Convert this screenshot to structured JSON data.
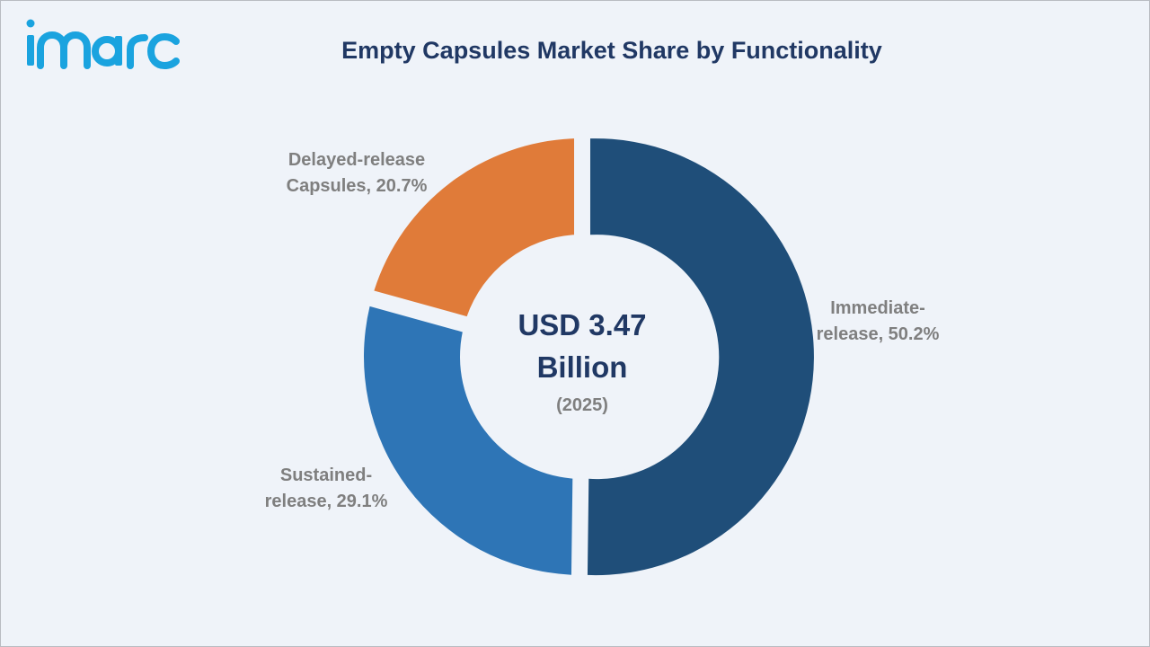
{
  "brand": {
    "logo_text": "imarc",
    "logo_color": "#1aa3df"
  },
  "chart_data": {
    "type": "pie",
    "variant": "donut",
    "title": "Empty Capsules Market Share by Functionality",
    "categories": [
      "Immediate-release",
      "Sustained-release",
      "Delayed-release Capsules"
    ],
    "values": [
      50.2,
      29.1,
      20.7
    ],
    "unit": "%",
    "labels": [
      [
        "Immediate-",
        "release, 50.2%"
      ],
      [
        "Sustained-",
        "release, 29.1%"
      ],
      [
        "Delayed-release",
        "Capsules, 20.7%"
      ]
    ],
    "colors": [
      "#1f4e79",
      "#2e75b6",
      "#e07b39"
    ],
    "center": {
      "lines": [
        "USD 3.47",
        "Billion"
      ],
      "year": "(2025)"
    },
    "legend": "none",
    "grid": false
  }
}
